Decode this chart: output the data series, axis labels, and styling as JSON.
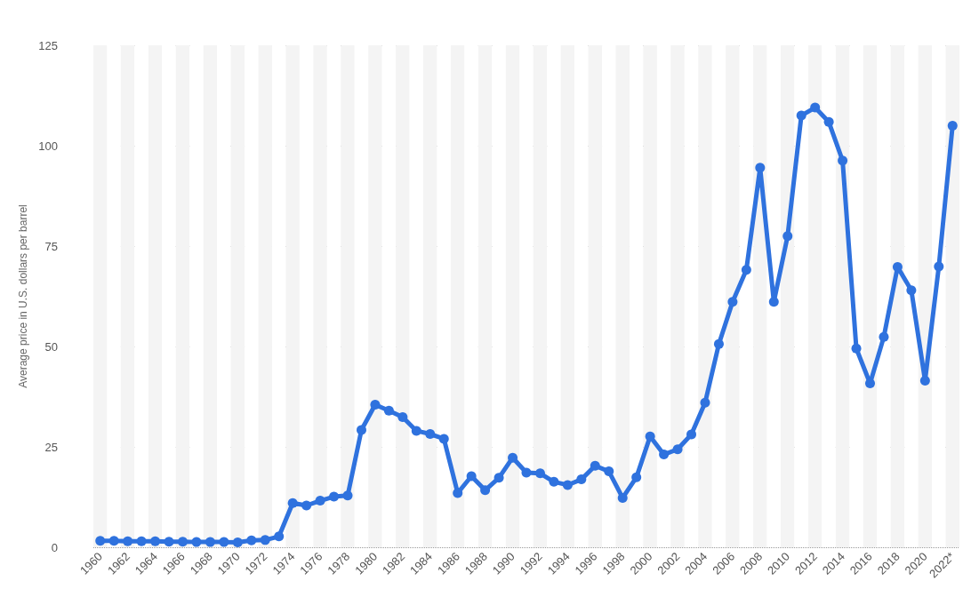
{
  "chart_data": {
    "type": "line",
    "ylabel": "Average price in U.S. dollars per barrel",
    "categories": [
      "1960",
      null,
      "1962",
      null,
      "1964",
      null,
      "1966",
      null,
      "1968",
      null,
      "1970",
      null,
      "1972",
      null,
      "1974",
      null,
      "1976",
      null,
      "1978",
      null,
      "1980",
      null,
      "1982",
      null,
      "1984",
      null,
      "1986",
      null,
      "1988",
      null,
      "1990",
      null,
      "1992",
      null,
      "1994",
      null,
      "1996",
      null,
      "1998",
      null,
      "2000",
      null,
      "2002",
      null,
      "2004",
      null,
      "2006",
      null,
      "2008",
      null,
      "2010",
      null,
      "2012",
      null,
      "2014",
      null,
      "2016",
      null,
      "2018",
      null,
      "2020",
      null,
      "2022*"
    ],
    "series": [
      {
        "color": "#2f72de",
        "values": [
          1.6,
          1.6,
          1.5,
          1.5,
          1.5,
          1.4,
          1.4,
          1.3,
          1.3,
          1.3,
          1.2,
          1.7,
          1.8,
          2.7,
          11,
          10.4,
          11.6,
          12.6,
          12.9,
          29.2,
          35.5,
          34,
          32.4,
          29,
          28.2,
          27,
          13.5,
          17.7,
          14.2,
          17.3,
          22.3,
          18.6,
          18.4,
          16.3,
          15.5,
          16.9,
          20.3,
          18.9,
          12.3,
          17.4,
          27.6,
          23.1,
          24.4,
          28.1,
          36,
          50.6,
          61.1,
          69.1,
          94.5,
          61.1,
          77.5,
          107.5,
          109.5,
          105.9,
          96.3,
          49.5,
          40.8,
          52.4,
          69.8,
          64,
          41.5,
          69.9,
          105
        ]
      }
    ],
    "ylim": [
      0,
      125
    ],
    "yticks": [
      0,
      25,
      50,
      75,
      100,
      125
    ],
    "grid": "y",
    "marker": "circle",
    "line_style": "solid"
  }
}
